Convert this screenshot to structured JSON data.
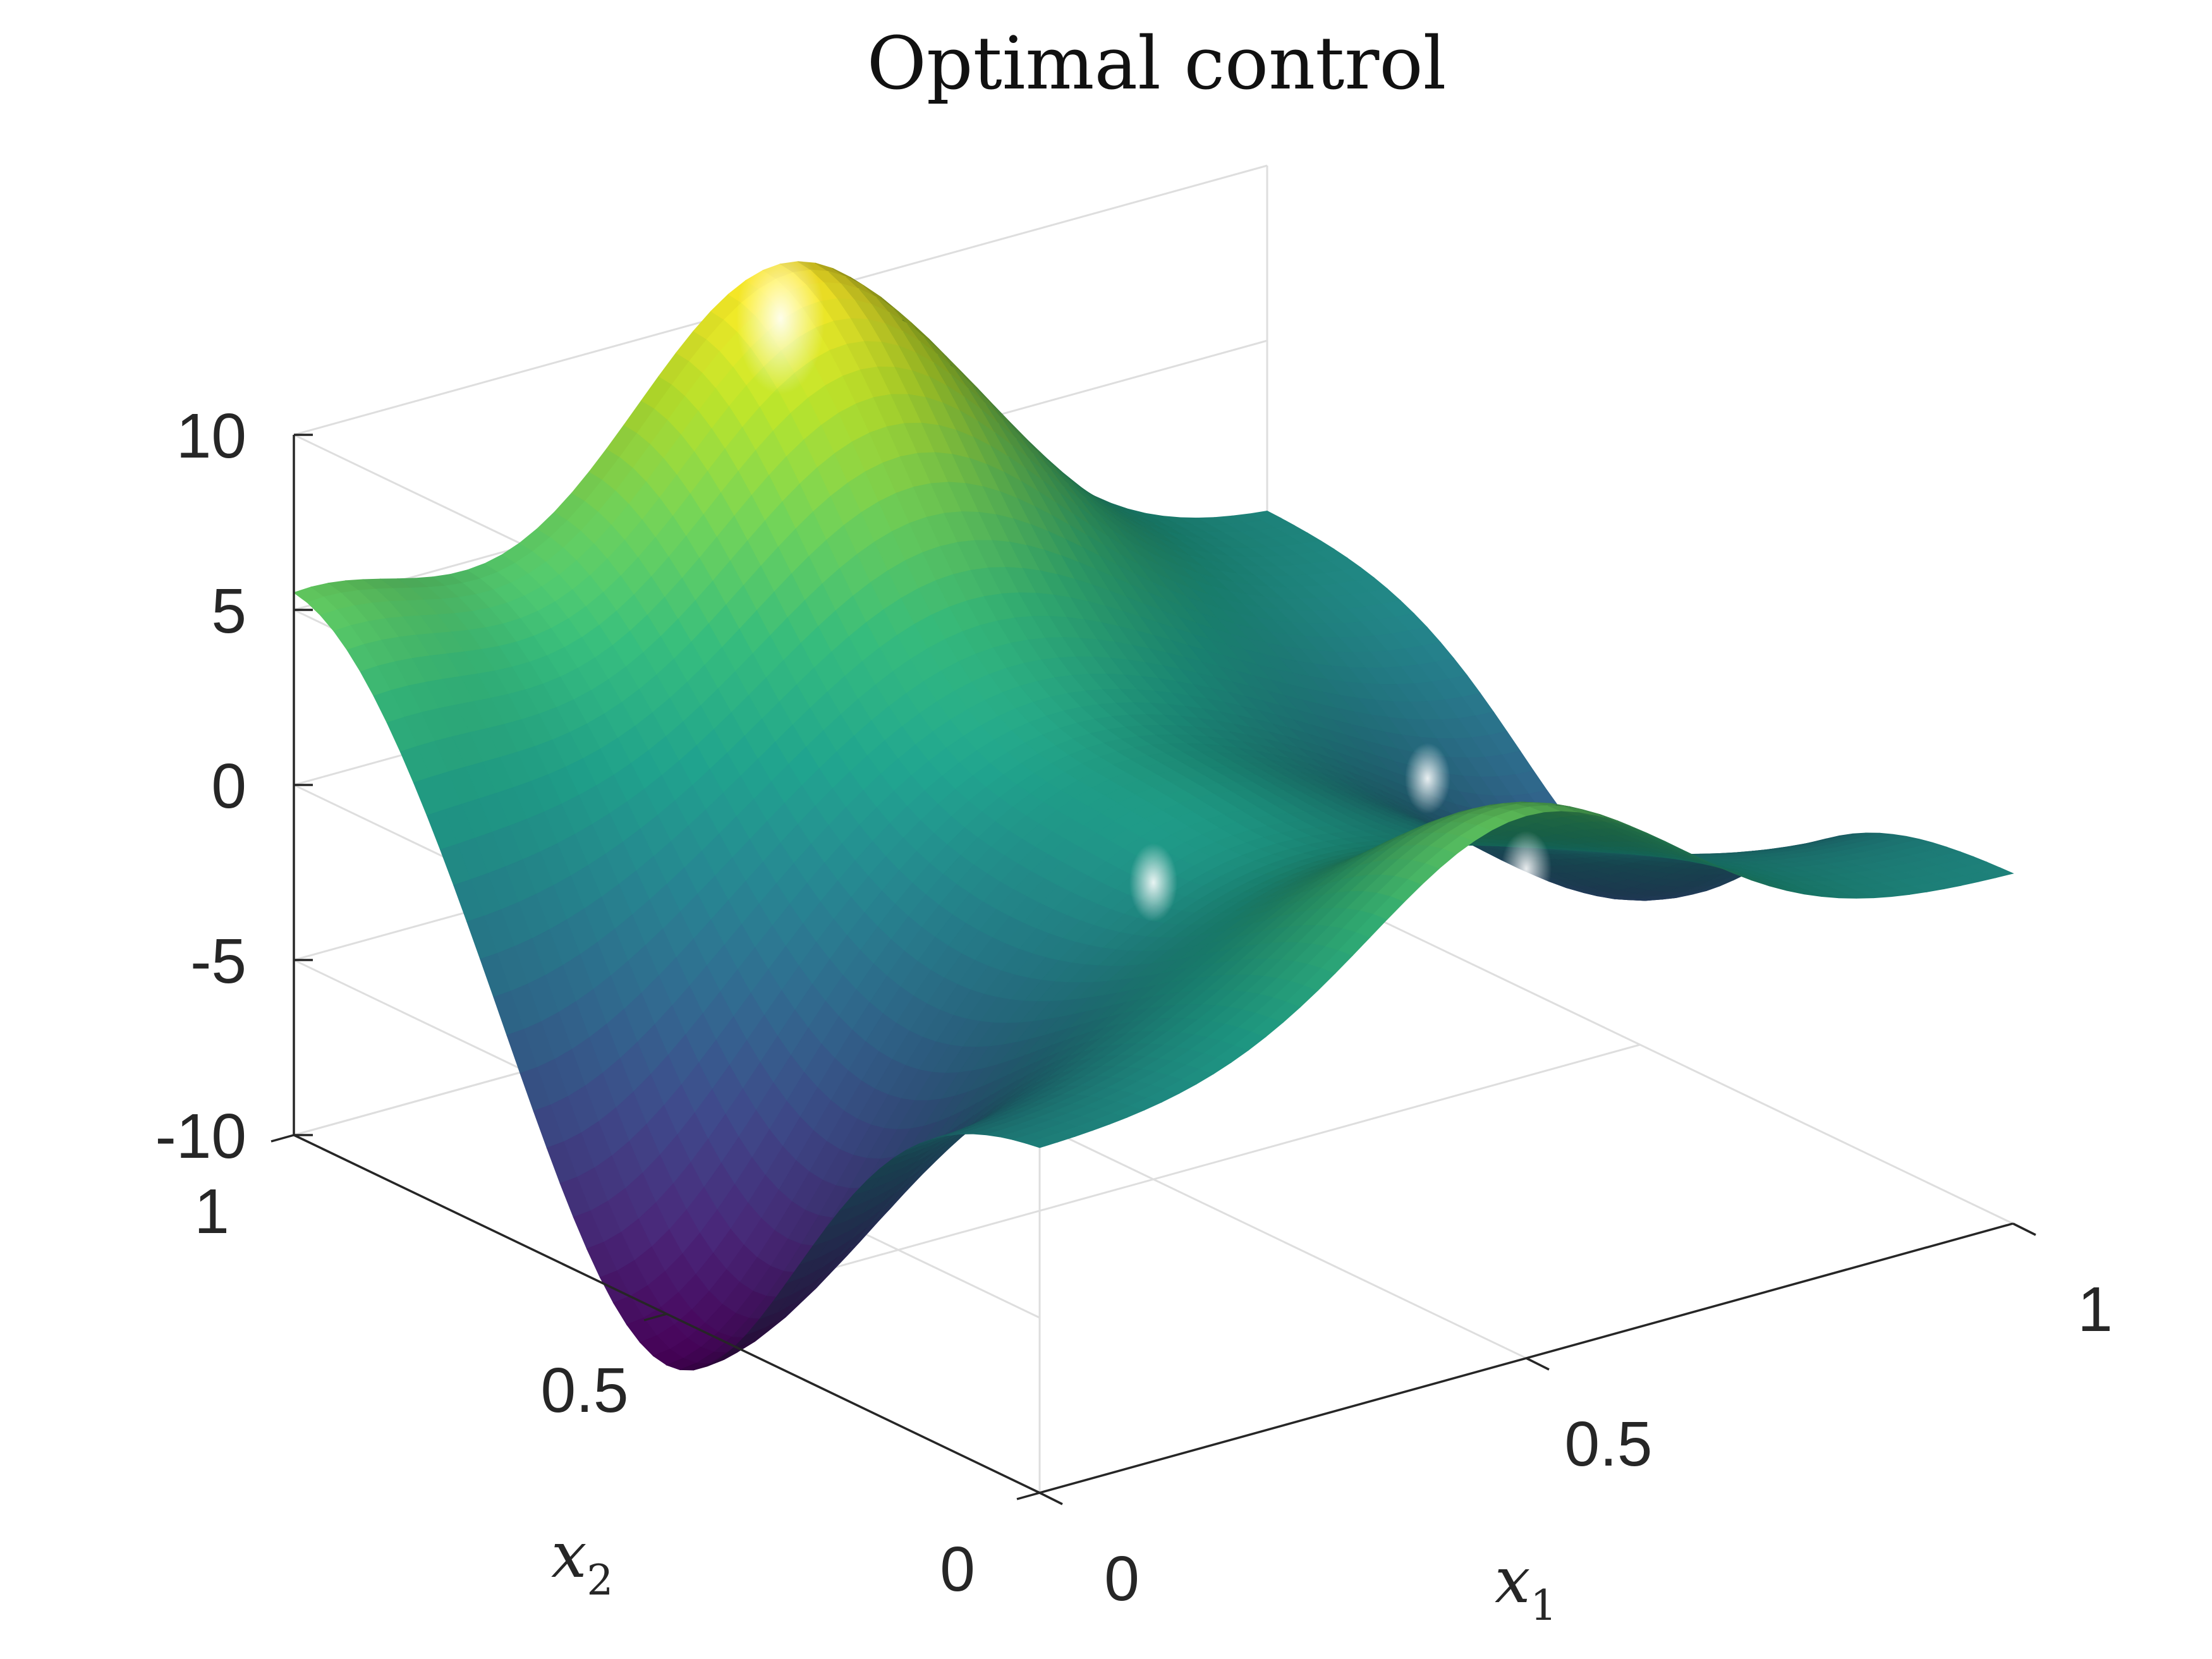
{
  "chart_data": {
    "type": "surface",
    "title": "Optimal control",
    "xlabel": "x",
    "xlabel_sub": "1",
    "ylabel": "x",
    "ylabel_sub": "2",
    "zlabel": "",
    "xlim": [
      0,
      1
    ],
    "ylim": [
      0,
      1
    ],
    "zlim": [
      -10,
      10
    ],
    "x_ticks": [
      0,
      0.5,
      1
    ],
    "x_tick_labels": [
      "0",
      "0.5",
      "1"
    ],
    "y_ticks": [
      0,
      0.5,
      1
    ],
    "y_tick_labels": [
      "0",
      "0.5",
      "1"
    ],
    "z_ticks": [
      -10,
      -5,
      0,
      5,
      10
    ],
    "z_tick_labels": [
      "-10",
      "-5",
      "0",
      "5",
      "10"
    ],
    "grid": true,
    "colormap": [
      "#440154",
      "#3b528b",
      "#21918c",
      "#5ec962",
      "#fde725"
    ],
    "surface_features": [
      {
        "x1": 0.5,
        "x2": 1.0,
        "value": 11.0
      },
      {
        "x1": 0.0,
        "x2": 0.5,
        "value": -11.5
      },
      {
        "x1": 0.0,
        "x2": 1.0,
        "value": 5.5
      },
      {
        "x1": 0.5,
        "x2": 0.0,
        "value": 5.5
      },
      {
        "x1": 1.0,
        "x2": 0.5,
        "value": -5.5
      },
      {
        "x1": 0.5,
        "x2": 0.5,
        "value": 0.0
      }
    ]
  }
}
